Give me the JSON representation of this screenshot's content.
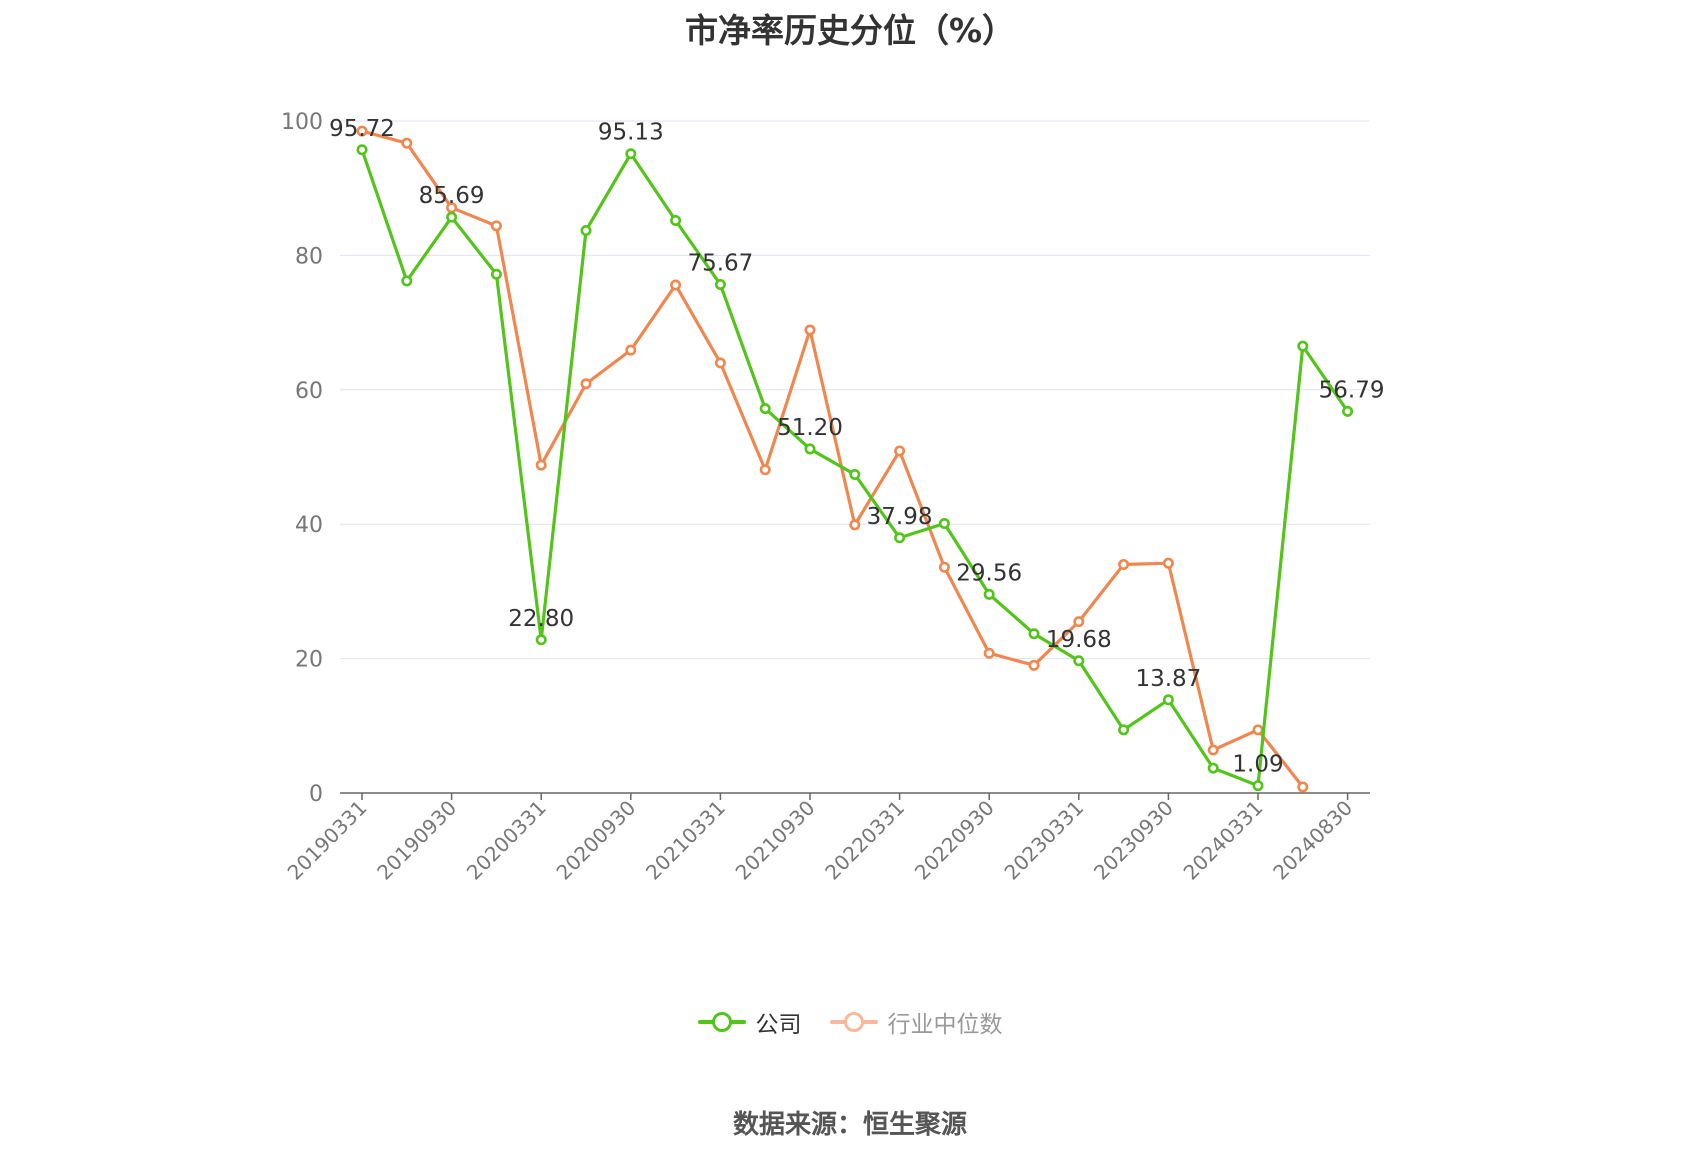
{
  "chart_data": {
    "type": "line",
    "title": "市净率历史分位（%）",
    "ylim": [
      0,
      100
    ],
    "y_ticks": [
      "0",
      "20",
      "40",
      "60",
      "80",
      "100"
    ],
    "x_tick_labels": [
      "20190331",
      "20190930",
      "20200331",
      "20200930",
      "20210331",
      "20210930",
      "20220331",
      "20220930",
      "20230331",
      "20230930",
      "20240331",
      "20240830"
    ],
    "x_tick_positions": [
      0,
      2,
      4,
      6,
      8,
      10,
      12,
      14,
      16,
      18,
      20,
      22
    ],
    "grid": true,
    "legend_position": "bottom",
    "series": [
      {
        "name": "公司",
        "color": "#52c41a",
        "values": [
          95.72,
          76.2,
          85.69,
          77.2,
          22.8,
          83.7,
          95.13,
          85.2,
          75.67,
          57.2,
          51.2,
          47.4,
          37.98,
          40.1,
          29.56,
          23.7,
          19.68,
          9.4,
          13.87,
          3.7,
          1.09,
          66.5,
          56.79
        ],
        "labels": [
          "95.72",
          "",
          "85.69",
          "",
          "22.80",
          "",
          "95.13",
          "",
          "75.67",
          "",
          "51.20",
          "",
          "37.98",
          "",
          "29.56",
          "",
          "19.68",
          "",
          "13.87",
          "",
          "1.09",
          "",
          "56.79"
        ]
      },
      {
        "name": "行业中位数",
        "color": "#f0874f",
        "values": [
          98.5,
          96.7,
          87.1,
          84.4,
          48.8,
          60.9,
          65.9,
          75.6,
          64.0,
          48.1,
          68.9,
          39.9,
          50.9,
          33.6,
          20.8,
          19.0,
          25.5,
          34.0,
          34.2,
          6.4,
          9.4,
          0.9,
          null
        ]
      }
    ]
  },
  "source_text": "数据来源：恒生聚源"
}
